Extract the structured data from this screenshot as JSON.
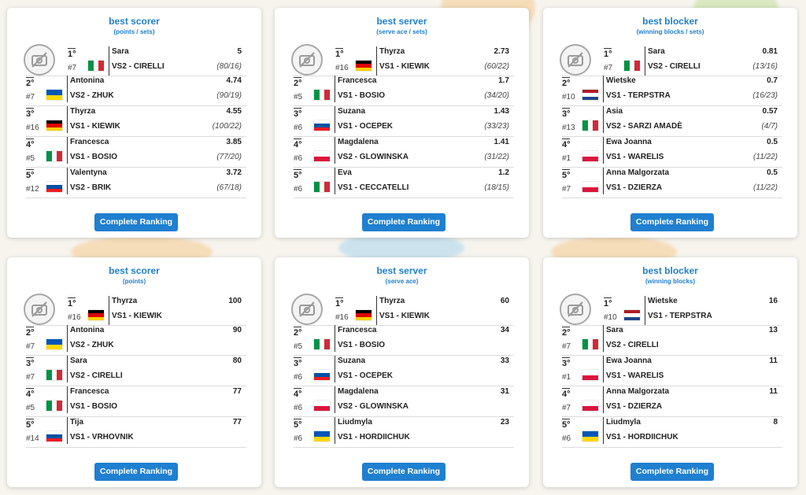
{
  "colors": {
    "accent": "#1f7fd0"
  },
  "cards": [
    {
      "title": "best scorer",
      "subtitle": "(points / sets)",
      "button": "Complete Ranking",
      "players": [
        {
          "rank": "1°",
          "num": "#7",
          "flag": "ita",
          "name": "Sara",
          "team": "VS2 - CIRELLI",
          "value": "5",
          "detail": "(80/16)"
        },
        {
          "rank": "2°",
          "num": "#7",
          "flag": "ukr",
          "name": "Antonina",
          "team": "VS2 - ZHUK",
          "value": "4.74",
          "detail": "(90/19)"
        },
        {
          "rank": "3°",
          "num": "#16",
          "flag": "ger",
          "name": "Thyrza",
          "team": "VS1 - KIEWIK",
          "value": "4.55",
          "detail": "(100/22)"
        },
        {
          "rank": "4°",
          "num": "#5",
          "flag": "ita",
          "name": "Francesca",
          "team": "VS1 - BOSIO",
          "value": "3.85",
          "detail": "(77/20)"
        },
        {
          "rank": "5°",
          "num": "#12",
          "flag": "slo",
          "name": "Valentyna",
          "team": "VS2 - BRIK",
          "value": "3.72",
          "detail": "(67/18)"
        }
      ]
    },
    {
      "title": "best server",
      "subtitle": "(serve ace / sets)",
      "button": "Complete Ranking",
      "players": [
        {
          "rank": "1°",
          "num": "#16",
          "flag": "ger",
          "name": "Thyrza",
          "team": "VS1 - KIEWIK",
          "value": "2.73",
          "detail": "(60/22)"
        },
        {
          "rank": "2°",
          "num": "#5",
          "flag": "ita",
          "name": "Francesca",
          "team": "VS1 - BOSIO",
          "value": "1.7",
          "detail": "(34/20)"
        },
        {
          "rank": "3°",
          "num": "#6",
          "flag": "slo",
          "name": "Suzana",
          "team": "VS1 - OCEPEK",
          "value": "1.43",
          "detail": "(33/23)"
        },
        {
          "rank": "4°",
          "num": "#6",
          "flag": "pol",
          "name": "Magdalena",
          "team": "VS2 - GLOWINSKA",
          "value": "1.41",
          "detail": "(31/22)"
        },
        {
          "rank": "5°",
          "num": "#6",
          "flag": "ita",
          "name": "Eva",
          "team": "VS1 - CECCATELLI",
          "value": "1.2",
          "detail": "(18/15)"
        }
      ]
    },
    {
      "title": "best blocker",
      "subtitle": "(winning blocks / sets)",
      "button": "Complete Ranking",
      "players": [
        {
          "rank": "1°",
          "num": "#7",
          "flag": "ita",
          "name": "Sara",
          "team": "VS2 - CIRELLI",
          "value": "0.81",
          "detail": "(13/16)"
        },
        {
          "rank": "2°",
          "num": "#10",
          "flag": "ned",
          "name": "Wietske",
          "team": "VS1 - TERPSTRA",
          "value": "0.7",
          "detail": "(16/23)"
        },
        {
          "rank": "3°",
          "num": "#13",
          "flag": "ita",
          "name": "Asia",
          "team": "VS2 - SARZI AMADÈ",
          "value": "0.57",
          "detail": "(4/7)"
        },
        {
          "rank": "4°",
          "num": "#1",
          "flag": "pol",
          "name": "Ewa Joanna",
          "team": "VS1 - WARELIS",
          "value": "0.5",
          "detail": "(11/22)"
        },
        {
          "rank": "5°",
          "num": "#7",
          "flag": "pol",
          "name": "Anna Malgorzata",
          "team": "VS1 - DZIERZA",
          "value": "0.5",
          "detail": "(11/22)"
        }
      ]
    },
    {
      "title": "best scorer",
      "subtitle": "(points)",
      "button": "Complete Ranking",
      "players": [
        {
          "rank": "1°",
          "num": "#16",
          "flag": "ger",
          "name": "Thyrza",
          "team": "VS1 - KIEWIK",
          "value": "100",
          "detail": ""
        },
        {
          "rank": "2°",
          "num": "#7",
          "flag": "ukr",
          "name": "Antonina",
          "team": "VS2 - ZHUK",
          "value": "90",
          "detail": ""
        },
        {
          "rank": "3°",
          "num": "#7",
          "flag": "ita",
          "name": "Sara",
          "team": "VS2 - CIRELLI",
          "value": "80",
          "detail": ""
        },
        {
          "rank": "4°",
          "num": "#5",
          "flag": "ita",
          "name": "Francesca",
          "team": "VS1 - BOSIO",
          "value": "77",
          "detail": ""
        },
        {
          "rank": "5°",
          "num": "#14",
          "flag": "slo",
          "name": "Tija",
          "team": "VS1 - VRHOVNIK",
          "value": "77",
          "detail": ""
        }
      ]
    },
    {
      "title": "best server",
      "subtitle": "(serve ace)",
      "button": "Complete Ranking",
      "players": [
        {
          "rank": "1°",
          "num": "#16",
          "flag": "ger",
          "name": "Thyrza",
          "team": "VS1 - KIEWIK",
          "value": "60",
          "detail": ""
        },
        {
          "rank": "2°",
          "num": "#5",
          "flag": "ita",
          "name": "Francesca",
          "team": "VS1 - BOSIO",
          "value": "34",
          "detail": ""
        },
        {
          "rank": "3°",
          "num": "#6",
          "flag": "slo",
          "name": "Suzana",
          "team": "VS1 - OCEPEK",
          "value": "33",
          "detail": ""
        },
        {
          "rank": "4°",
          "num": "#6",
          "flag": "pol",
          "name": "Magdalena",
          "team": "VS2 - GLOWINSKA",
          "value": "31",
          "detail": ""
        },
        {
          "rank": "5°",
          "num": "#6",
          "flag": "ukr",
          "name": "Liudmyla",
          "team": "VS1 - HORDIICHUK",
          "value": "23",
          "detail": ""
        }
      ]
    },
    {
      "title": "best blocker",
      "subtitle": "(winning blocks)",
      "button": "Complete Ranking",
      "players": [
        {
          "rank": "1°",
          "num": "#10",
          "flag": "ned",
          "name": "Wietske",
          "team": "VS1 - TERPSTRA",
          "value": "16",
          "detail": ""
        },
        {
          "rank": "2°",
          "num": "#7",
          "flag": "ita",
          "name": "Sara",
          "team": "VS2 - CIRELLI",
          "value": "13",
          "detail": ""
        },
        {
          "rank": "3°",
          "num": "#1",
          "flag": "pol",
          "name": "Ewa Joanna",
          "team": "VS1 - WARELIS",
          "value": "11",
          "detail": ""
        },
        {
          "rank": "4°",
          "num": "#7",
          "flag": "pol",
          "name": "Anna Malgorzata",
          "team": "VS1 - DZIERZA",
          "value": "11",
          "detail": ""
        },
        {
          "rank": "5°",
          "num": "#6",
          "flag": "ukr",
          "name": "Liudmyla",
          "team": "VS1 - HORDIICHUK",
          "value": "8",
          "detail": ""
        }
      ]
    }
  ]
}
